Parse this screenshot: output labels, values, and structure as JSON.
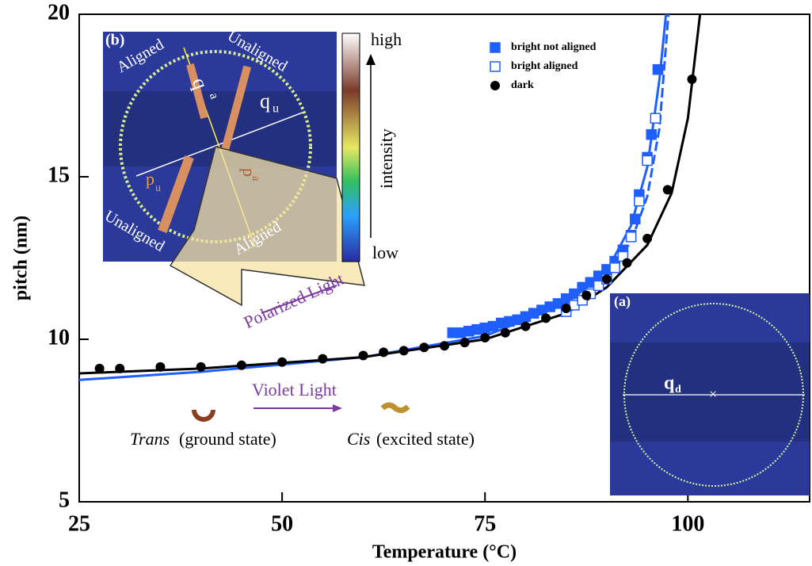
{
  "chart_data": {
    "type": "scatter",
    "xlabel": "Temperature (°C)",
    "ylabel": "pitch (nm)",
    "xlim": [
      25,
      115
    ],
    "ylim": [
      5,
      20
    ],
    "xticks": [
      25,
      50,
      75,
      100
    ],
    "yticks": [
      5,
      10,
      15,
      20
    ],
    "legend": "upper right",
    "series": [
      {
        "name": "bright not aligned",
        "color": "#1f5fff",
        "marker": "filled-square",
        "x": [
          71,
          72,
          73,
          74,
          75,
          76,
          77,
          78,
          79,
          80,
          81,
          82,
          83,
          84,
          85,
          86,
          87,
          88,
          89,
          90,
          91,
          92,
          93,
          93.5,
          94,
          95,
          95.5,
          96.3
        ],
        "values": [
          10.2,
          10.2,
          10.25,
          10.3,
          10.35,
          10.4,
          10.5,
          10.55,
          10.6,
          10.7,
          10.8,
          10.9,
          11.0,
          11.1,
          11.25,
          11.4,
          11.6,
          11.75,
          11.95,
          12.15,
          12.4,
          12.75,
          13.2,
          13.7,
          14.45,
          15.6,
          16.3,
          18.3
        ]
      },
      {
        "name": "bright aligned",
        "color": "#1f5fff",
        "marker": "open-square",
        "x": [
          85,
          86,
          87,
          88,
          89,
          90,
          91,
          92,
          93,
          94,
          95,
          96
        ],
        "values": [
          10.85,
          11.05,
          11.2,
          11.4,
          11.65,
          11.85,
          12.2,
          12.55,
          13.15,
          14.25,
          15.5,
          16.8
        ]
      },
      {
        "name": "dark",
        "color": "#000000",
        "marker": "circle",
        "x": [
          27.5,
          30,
          35,
          40,
          45,
          50,
          55,
          60,
          62.5,
          65,
          67.5,
          70,
          72.5,
          75,
          77.5,
          80,
          82.5,
          85,
          87.5,
          90,
          92.5,
          95,
          97.5,
          100.5
        ],
        "values": [
          9.1,
          9.1,
          9.15,
          9.15,
          9.2,
          9.3,
          9.4,
          9.5,
          9.6,
          9.65,
          9.75,
          9.8,
          9.9,
          10.05,
          10.2,
          10.4,
          10.65,
          10.95,
          11.35,
          11.85,
          12.35,
          13.1,
          14.6,
          18.0
        ]
      }
    ],
    "fits": [
      {
        "color": "#1f5fff",
        "dash": false,
        "x": [
          25,
          40,
          60,
          75,
          85,
          90,
          93,
          95,
          96.5,
          97.3
        ],
        "values": [
          8.75,
          9.0,
          9.45,
          10.1,
          11.1,
          12.1,
          13.5,
          15.3,
          18,
          20
        ]
      },
      {
        "color": "#1f5fff",
        "dash": true,
        "x": [
          83,
          87,
          90,
          93,
          95,
          96.5,
          97.6
        ],
        "values": [
          10.9,
          11.5,
          12.0,
          13.0,
          14.4,
          16.5,
          20
        ]
      },
      {
        "color": "#000000",
        "dash": false,
        "x": [
          25,
          40,
          60,
          75,
          85,
          90,
          95,
          98,
          100,
          101.5
        ],
        "values": [
          8.95,
          9.1,
          9.45,
          10.0,
          10.8,
          11.6,
          12.9,
          14.5,
          16.8,
          20
        ]
      }
    ],
    "annotations": [
      "(b)",
      "Aligned",
      "Unaligned",
      "Unaligned",
      "Aligned",
      "q",
      "a",
      "q",
      "u",
      "p",
      "u",
      "p",
      "a",
      "high",
      "intensity",
      "low",
      "Polarized Light",
      "Violet Light",
      "Trans",
      "(ground state)",
      "Cis",
      "(excited state)",
      "(a)",
      "q",
      "d"
    ]
  }
}
